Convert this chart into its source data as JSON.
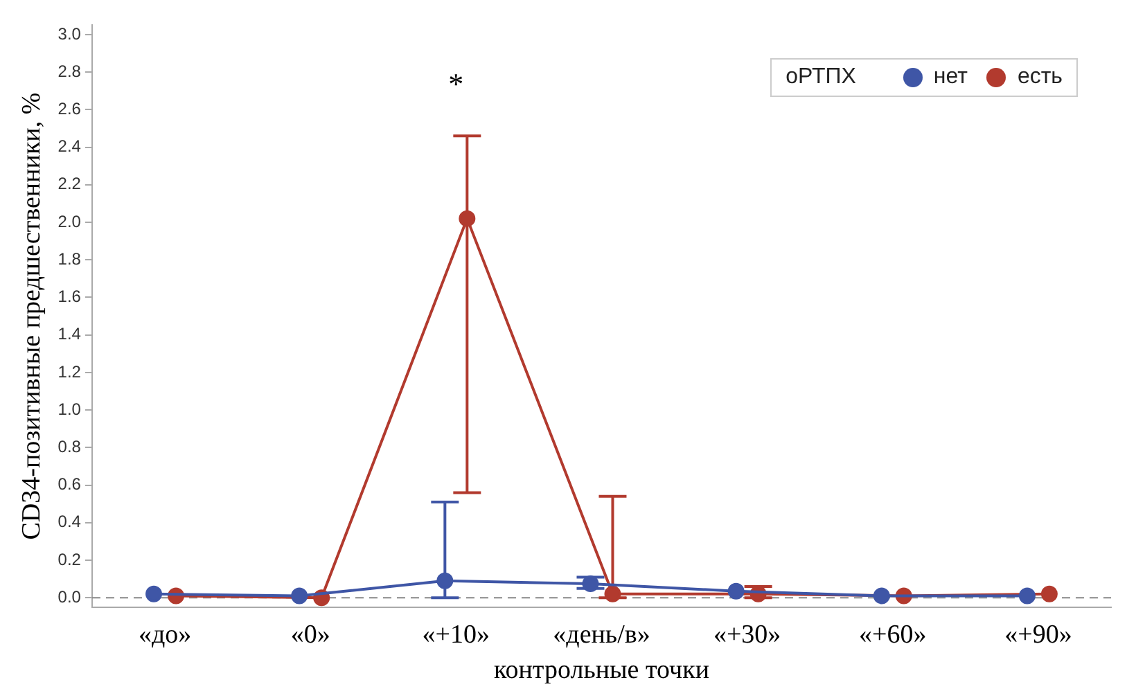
{
  "chart_data": {
    "type": "line",
    "xlabel": "контрольные точки",
    "ylabel": "CD34-позитивные предшественники, %",
    "categories": [
      "«до»",
      "«0»",
      "«+10»",
      "«день/в»",
      "«+30»",
      "«+60»",
      "«+90»"
    ],
    "series": [
      {
        "name": "нет",
        "color": "#3f56a6",
        "values": [
          0.02,
          0.01,
          0.09,
          0.075,
          0.035,
          0.01,
          0.01
        ],
        "errors": [
          null,
          null,
          [
            0,
            0.51
          ],
          [
            0.05,
            0.11
          ],
          null,
          null,
          null
        ]
      },
      {
        "name": "есть",
        "color": "#b23a2e",
        "values": [
          0.01,
          0.0,
          2.02,
          0.02,
          0.02,
          0.01,
          0.02
        ],
        "errors": [
          null,
          null,
          [
            0.56,
            2.46
          ],
          [
            0,
            0.54
          ],
          [
            0,
            0.06
          ],
          null,
          null
        ]
      }
    ],
    "legend_title": "оРТПХ",
    "legend": "top right",
    "marker": "circle",
    "line_style": "solid",
    "grid": false,
    "ylim": [
      -0.05,
      3.05
    ],
    "yticks": [
      {
        "value": 0,
        "label": "0.0"
      },
      0.2,
      0.4,
      0.6,
      0.8,
      {
        "value": 1,
        "label": "1.0"
      },
      1.2,
      1.4,
      1.6,
      1.8,
      {
        "value": 2,
        "label": "2.0"
      },
      2.2,
      2.4,
      2.6,
      2.8,
      {
        "value": 3,
        "label": "3.0"
      }
    ],
    "ref_lines": [
      {
        "axis": "y",
        "value": 0,
        "color": "#888888",
        "line_style": "dashed"
      }
    ],
    "annotations": [
      "*"
    ]
  }
}
